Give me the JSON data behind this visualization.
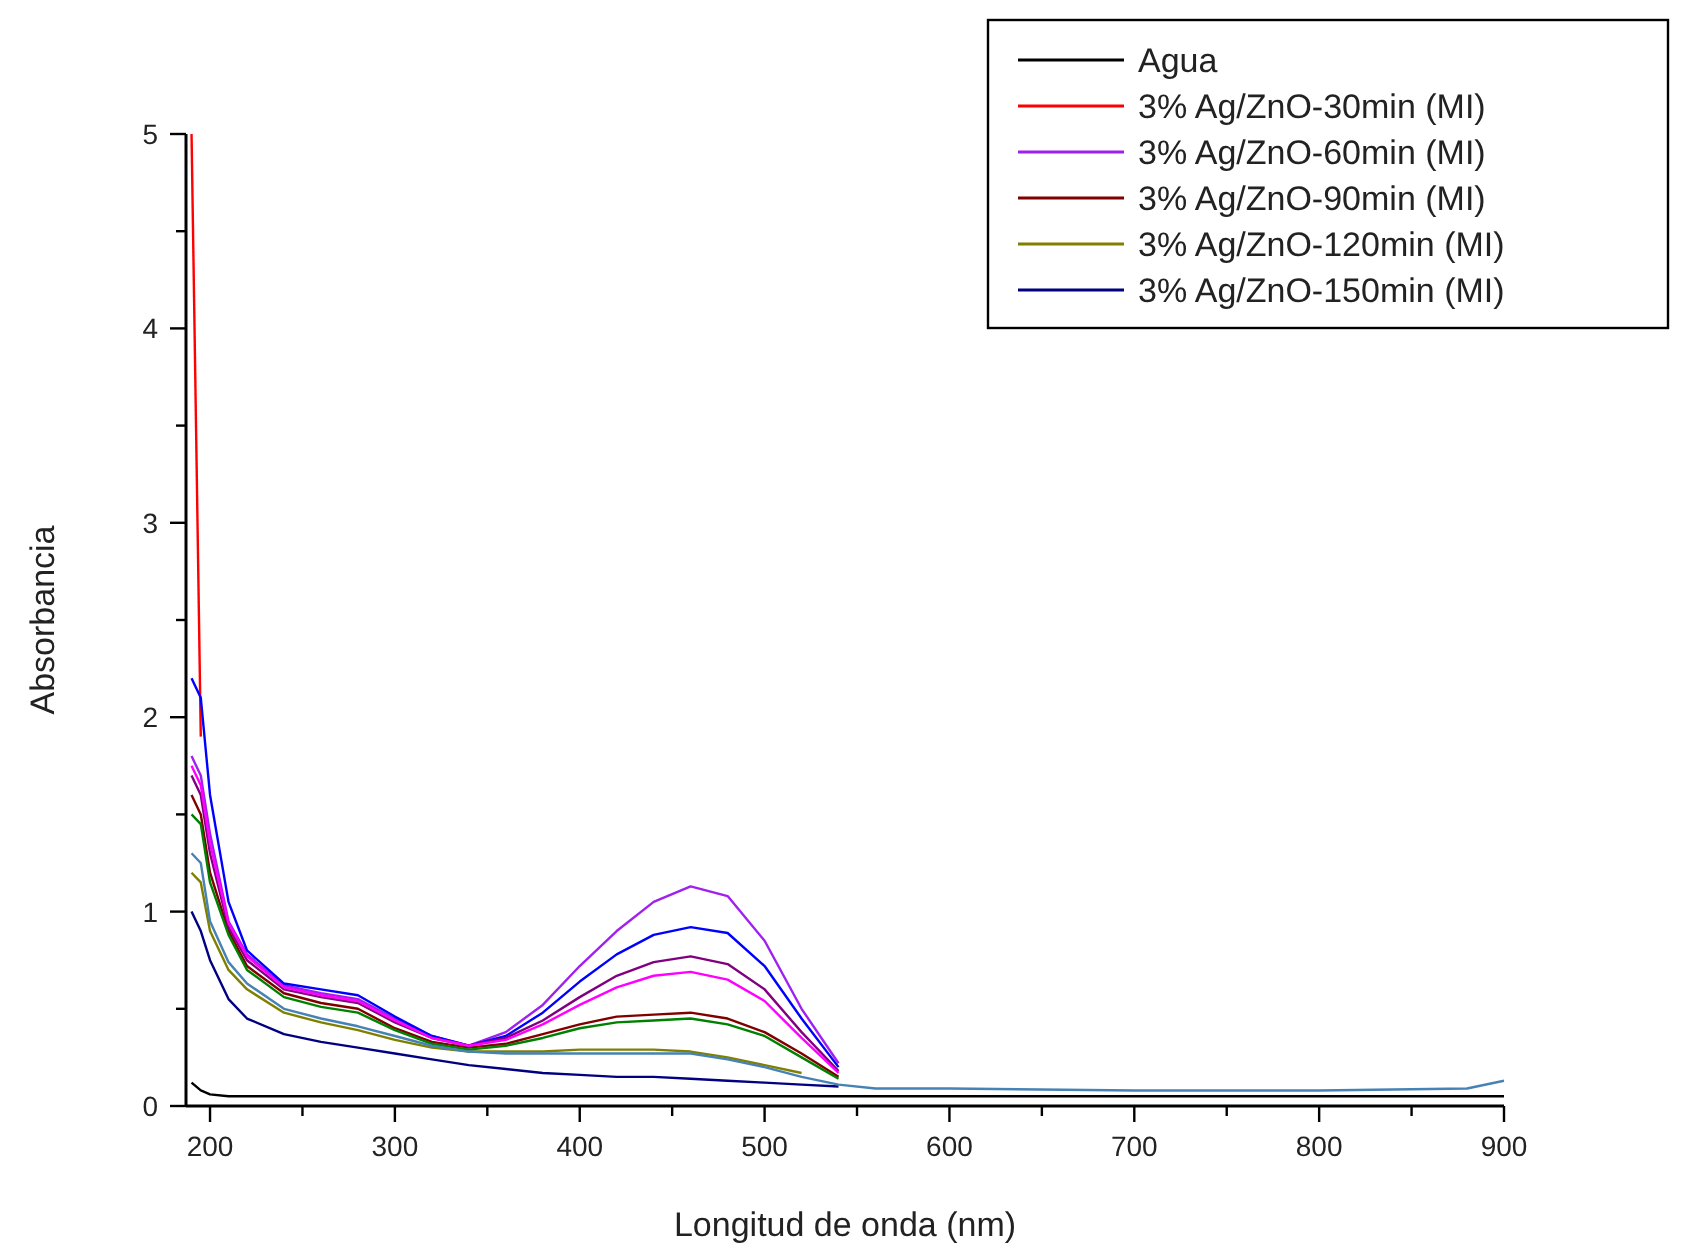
{
  "chart_data": {
    "type": "line",
    "xlabel": "Longitud de onda (nm)",
    "ylabel": "Absorbancia",
    "x": [
      190,
      195,
      200,
      210,
      220,
      240,
      260,
      280,
      300,
      320,
      340,
      360,
      380,
      400,
      420,
      440,
      460,
      480,
      500,
      520,
      540,
      560,
      580,
      600,
      700,
      800,
      880,
      900
    ],
    "xlim": [
      187,
      900
    ],
    "xticks": [
      200,
      {
        "value": 250,
        "label": null
      },
      300,
      {
        "value": 350,
        "label": null
      },
      400,
      {
        "value": 450,
        "label": null
      },
      500,
      {
        "value": 550,
        "label": null
      },
      600,
      {
        "value": 650,
        "label": null
      },
      700,
      {
        "value": 750,
        "label": null
      },
      800,
      {
        "value": 850,
        "label": null
      },
      900
    ],
    "ylim": [
      0,
      5
    ],
    "yticks": [
      0,
      {
        "value": 0.5,
        "label": null
      },
      1,
      {
        "value": 1.5,
        "label": null
      },
      2,
      {
        "value": 2.5,
        "label": null
      },
      3,
      {
        "value": 3.5,
        "label": null
      },
      4,
      {
        "value": 4.5,
        "label": null
      },
      5
    ],
    "grid": false,
    "legend": "top right",
    "line_style": "solid",
    "marker": "none",
    "series": [
      {
        "name": "Agua",
        "color": "#000000",
        "values": [
          0.12,
          0.08,
          0.06,
          0.05,
          0.05,
          0.05,
          0.05,
          0.05,
          0.05,
          0.05,
          0.05,
          0.05,
          0.05,
          0.05,
          0.05,
          0.05,
          0.05,
          0.05,
          0.05,
          0.05,
          0.05,
          0.05,
          0.05,
          0.05,
          0.05,
          0.05,
          0.05,
          0.05
        ]
      },
      {
        "name": "3% Ag/ZnO-30min (MI)",
        "color": "#ff0000",
        "values": [
          5.0,
          1.9,
          null,
          null,
          null,
          null,
          null,
          null,
          null,
          null,
          null,
          null,
          null,
          null,
          null,
          null,
          null,
          null,
          null,
          null,
          null,
          null,
          null,
          null,
          null,
          null,
          null,
          null
        ]
      },
      {
        "name": "3% Ag/ZnO-60min (MI)",
        "color": "#a020f0",
        "values": [
          1.8,
          1.7,
          1.4,
          0.95,
          0.78,
          0.62,
          0.58,
          0.55,
          0.45,
          0.36,
          0.31,
          0.38,
          0.52,
          0.72,
          0.9,
          1.05,
          1.13,
          1.08,
          0.85,
          0.5,
          0.22,
          null,
          null,
          null,
          null,
          null,
          null,
          null
        ]
      },
      {
        "name": "3% Ag/ZnO-90min (MI)",
        "color": "#800000",
        "values": [
          1.6,
          1.5,
          1.2,
          0.9,
          0.72,
          0.58,
          0.53,
          0.5,
          0.4,
          0.33,
          0.3,
          0.32,
          0.37,
          0.42,
          0.46,
          0.47,
          0.48,
          0.45,
          0.38,
          0.27,
          0.15,
          null,
          null,
          null,
          null,
          null,
          null,
          null
        ]
      },
      {
        "name": "3% Ag/ZnO-120min (MI)",
        "color": "#808000",
        "values": [
          1.2,
          1.15,
          0.9,
          0.7,
          0.6,
          0.48,
          0.43,
          0.39,
          0.34,
          0.3,
          0.28,
          0.28,
          0.28,
          0.29,
          0.29,
          0.29,
          0.28,
          0.25,
          0.21,
          0.17,
          null,
          null,
          null,
          null,
          null,
          null,
          null,
          null
        ]
      },
      {
        "name": "3% Ag/ZnO-150min (MI)",
        "color": "#000080",
        "values": [
          1.0,
          0.9,
          0.75,
          0.55,
          0.45,
          0.37,
          0.33,
          0.3,
          0.27,
          0.24,
          0.21,
          0.19,
          0.17,
          0.16,
          0.15,
          0.15,
          0.14,
          0.13,
          0.12,
          0.11,
          0.1,
          null,
          null,
          null,
          null,
          null,
          null,
          null
        ]
      },
      {
        "color": "#0000ff",
        "values": [
          2.2,
          2.1,
          1.6,
          1.05,
          0.8,
          0.63,
          0.6,
          0.57,
          0.46,
          0.36,
          0.31,
          0.36,
          0.48,
          0.64,
          0.78,
          0.88,
          0.92,
          0.89,
          0.72,
          0.45,
          0.2,
          null,
          null,
          null,
          null,
          null,
          null,
          null
        ]
      },
      {
        "color": "#800080",
        "values": [
          1.7,
          1.6,
          1.3,
          0.92,
          0.75,
          0.6,
          0.56,
          0.53,
          0.43,
          0.35,
          0.31,
          0.35,
          0.44,
          0.56,
          0.67,
          0.74,
          0.77,
          0.73,
          0.6,
          0.38,
          0.18,
          null,
          null,
          null,
          null,
          null,
          null,
          null
        ]
      },
      {
        "color": "#ff00ff",
        "values": [
          1.75,
          1.65,
          1.35,
          0.94,
          0.77,
          0.61,
          0.57,
          0.54,
          0.44,
          0.35,
          0.31,
          0.34,
          0.42,
          0.52,
          0.61,
          0.67,
          0.69,
          0.65,
          0.54,
          0.35,
          0.17,
          null,
          null,
          null,
          null,
          null,
          null,
          null
        ]
      },
      {
        "color": "#008000",
        "values": [
          1.5,
          1.45,
          1.15,
          0.88,
          0.7,
          0.56,
          0.51,
          0.48,
          0.39,
          0.32,
          0.29,
          0.31,
          0.35,
          0.4,
          0.43,
          0.44,
          0.45,
          0.42,
          0.36,
          0.25,
          0.14,
          null,
          null,
          null,
          null,
          null,
          null,
          null
        ]
      },
      {
        "color": "#4682b4",
        "values": [
          1.3,
          1.25,
          0.95,
          0.74,
          0.63,
          0.5,
          0.45,
          0.41,
          0.36,
          0.31,
          0.28,
          0.27,
          0.27,
          0.27,
          0.27,
          0.27,
          0.27,
          0.24,
          0.2,
          0.15,
          0.11,
          0.09,
          0.09,
          0.09,
          0.08,
          0.08,
          0.09,
          0.13
        ]
      }
    ]
  }
}
